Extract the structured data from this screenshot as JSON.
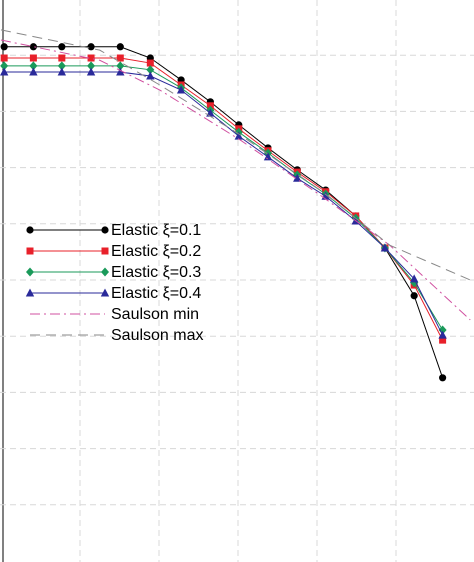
{
  "chart_data": {
    "type": "line",
    "xlim": [
      0,
      6
    ],
    "ylim": [
      0,
      10
    ],
    "xticks": [
      1,
      2,
      3,
      4,
      5
    ],
    "yticks": [
      1,
      2,
      3,
      4,
      5,
      6,
      7,
      8,
      9
    ],
    "grid": true,
    "legend": "center-left",
    "series": [
      {
        "name": "Elastic ξ=0.1",
        "color": "#000000",
        "marker": "circle",
        "dash": "solid",
        "x": [
          0.04,
          0.41,
          0.77,
          1.14,
          1.51,
          1.89,
          2.28,
          2.65,
          3.01,
          3.38,
          3.75,
          4.11,
          4.49,
          4.86,
          5.23,
          5.59
        ],
        "values": [
          9.15,
          9.15,
          9.15,
          9.15,
          9.15,
          8.95,
          8.56,
          8.17,
          7.76,
          7.35,
          6.96,
          6.6,
          6.14,
          5.57,
          4.72,
          3.26
        ]
      },
      {
        "name": "Elastic ξ=0.2",
        "color": "#e8202a",
        "marker": "square",
        "dash": "solid",
        "x": [
          0.04,
          0.41,
          0.77,
          1.14,
          1.51,
          1.89,
          2.28,
          2.65,
          3.01,
          3.38,
          3.75,
          4.11,
          4.49,
          4.86,
          5.23,
          5.59
        ],
        "values": [
          8.95,
          8.95,
          8.95,
          8.95,
          8.95,
          8.86,
          8.47,
          8.1,
          7.69,
          7.3,
          6.92,
          6.57,
          6.14,
          5.57,
          4.91,
          3.93
        ]
      },
      {
        "name": "Elastic ξ=0.3",
        "color": "#1a9a5a",
        "marker": "diamond",
        "dash": "solid",
        "x": [
          0.04,
          0.41,
          0.77,
          1.14,
          1.51,
          1.89,
          2.28,
          2.65,
          3.01,
          3.38,
          3.75,
          4.11,
          4.49,
          4.86,
          5.23,
          5.59
        ],
        "values": [
          8.81,
          8.81,
          8.81,
          8.81,
          8.81,
          8.74,
          8.42,
          8.02,
          7.63,
          7.26,
          6.87,
          6.53,
          6.1,
          5.57,
          4.95,
          4.11
        ]
      },
      {
        "name": "Elastic ξ=0.4",
        "color": "#2a2a9a",
        "marker": "triangle",
        "dash": "solid",
        "x": [
          0.04,
          0.41,
          0.77,
          1.14,
          1.51,
          1.89,
          2.28,
          2.65,
          3.01,
          3.38,
          3.75,
          4.11,
          4.49,
          4.86,
          5.23,
          5.59
        ],
        "values": [
          8.7,
          8.7,
          8.7,
          8.7,
          8.7,
          8.63,
          8.38,
          7.97,
          7.56,
          7.19,
          6.81,
          6.49,
          6.05,
          5.57,
          5.02,
          4.02
        ]
      },
      {
        "name": "Saulson min",
        "color": "#d050a0",
        "marker": "none",
        "dash": "dashdot",
        "x": [
          0,
          1.25,
          2.01,
          3.03,
          4.04,
          4.92,
          5.94
        ],
        "values": [
          9.27,
          8.91,
          8.38,
          7.49,
          6.51,
          5.62,
          4.29
        ]
      },
      {
        "name": "Saulson max",
        "color": "#888888",
        "marker": "none",
        "dash": "dashed",
        "x": [
          0,
          1.25,
          2.01,
          3.03,
          4.04,
          4.92,
          5.94
        ],
        "values": [
          9.45,
          9.09,
          8.47,
          7.58,
          6.6,
          5.62,
          5.0
        ]
      }
    ]
  }
}
